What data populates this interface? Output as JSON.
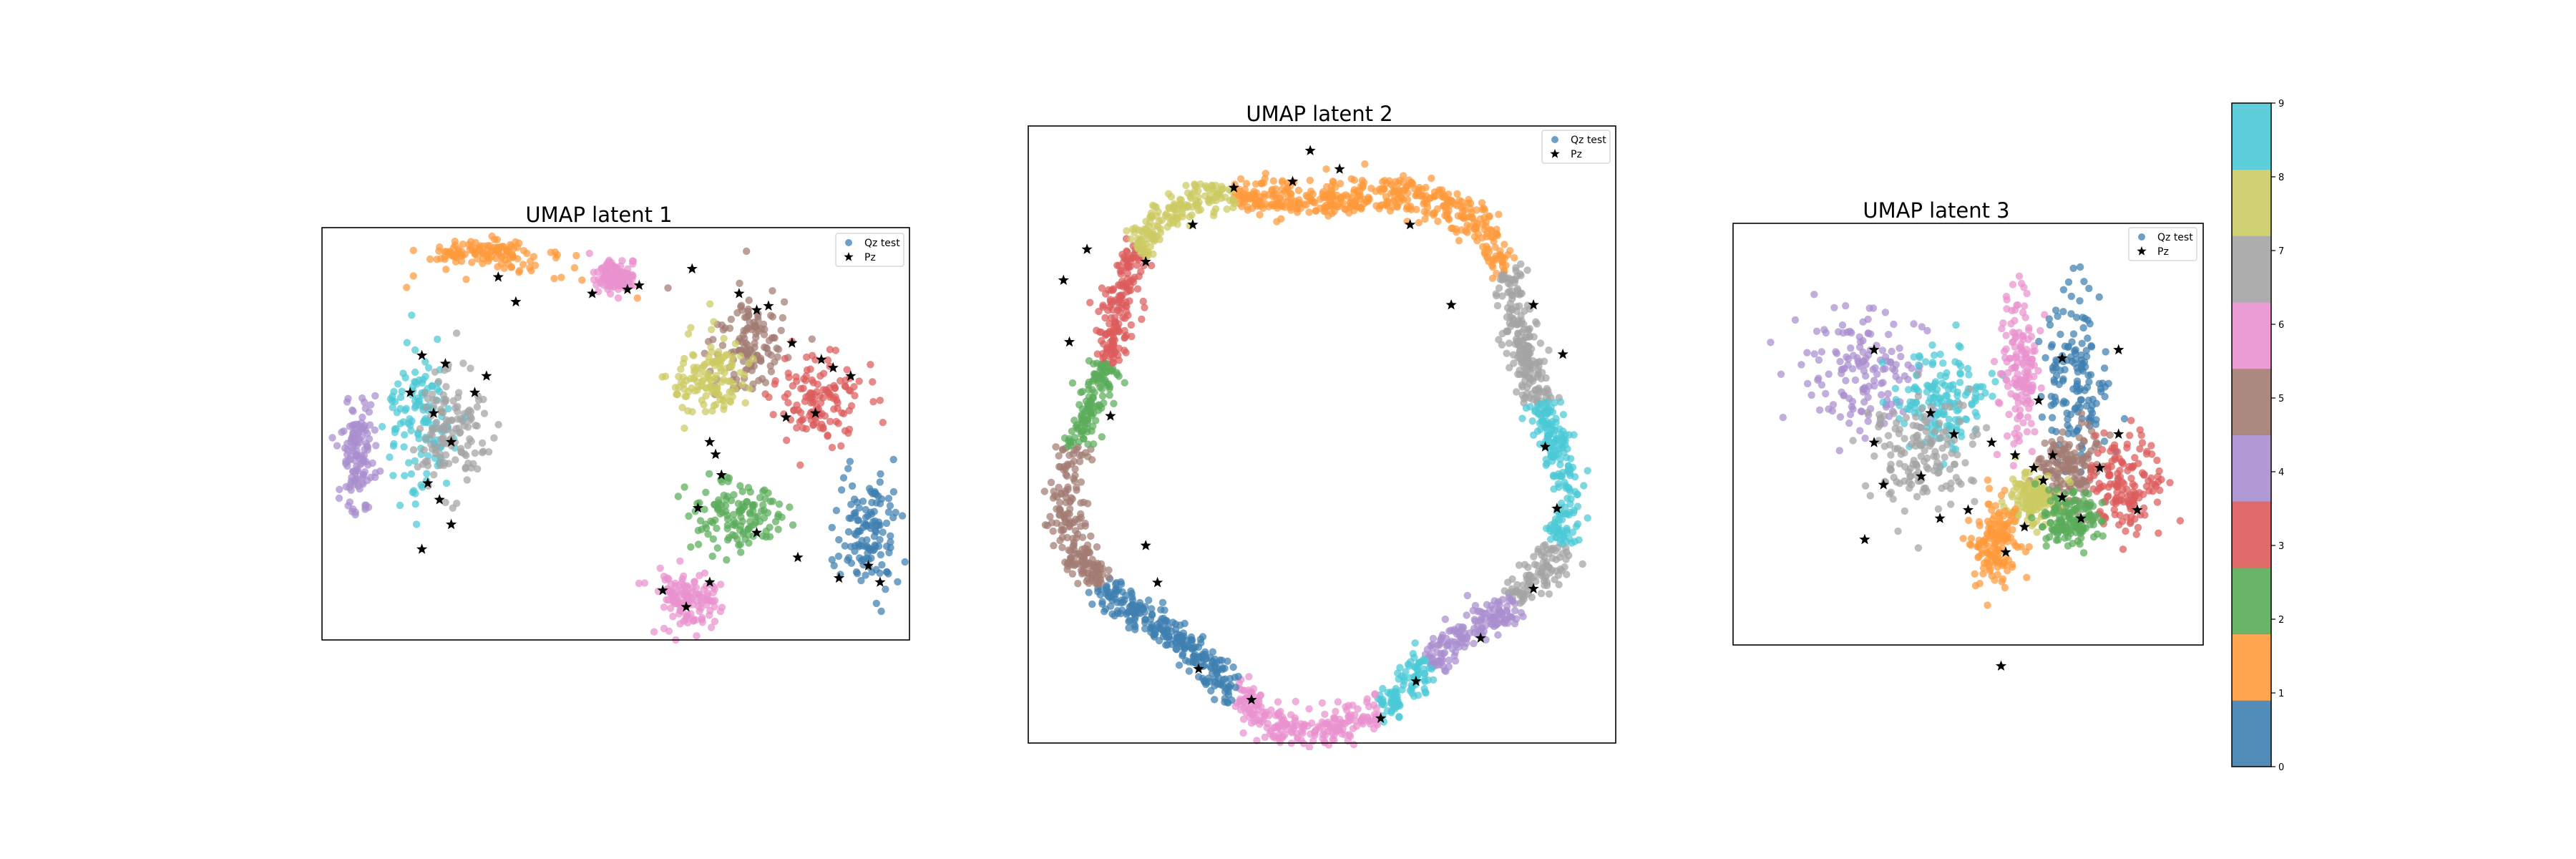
{
  "chart_data": [
    {
      "type": "scatter",
      "title": "UMAP latent 1",
      "xlabel": "",
      "ylabel": "",
      "grid": false,
      "ticks": "none",
      "legend_position": "upper-right",
      "legend": [
        {
          "label": "Qz test",
          "marker": "circle",
          "color": "#3f7fb0"
        },
        {
          "label": "Pz",
          "marker": "star",
          "color": "#000000"
        }
      ],
      "clusters": [
        {
          "class": 1,
          "label": "orange arc",
          "center": [
            0.28,
            0.08
          ],
          "spread": [
            0.12,
            0.035
          ],
          "shape": "arc"
        },
        {
          "class": 6,
          "label": "pink small",
          "center": [
            0.5,
            0.12
          ],
          "spread": [
            0.03,
            0.03
          ]
        },
        {
          "class": 5,
          "label": "brown",
          "center": [
            0.73,
            0.28
          ],
          "spread": [
            0.06,
            0.1
          ]
        },
        {
          "class": 8,
          "label": "olive",
          "center": [
            0.66,
            0.36
          ],
          "spread": [
            0.06,
            0.1
          ]
        },
        {
          "class": 3,
          "label": "red",
          "center": [
            0.85,
            0.42
          ],
          "spread": [
            0.07,
            0.1
          ]
        },
        {
          "class": 2,
          "label": "green",
          "center": [
            0.7,
            0.7
          ],
          "spread": [
            0.07,
            0.08
          ]
        },
        {
          "class": 0,
          "label": "blue",
          "center": [
            0.93,
            0.74
          ],
          "spread": [
            0.05,
            0.12
          ]
        },
        {
          "class": 6,
          "label": "pink lower",
          "center": [
            0.62,
            0.9
          ],
          "spread": [
            0.05,
            0.06
          ]
        },
        {
          "class": 9,
          "label": "cyan",
          "center": [
            0.17,
            0.47
          ],
          "spread": [
            0.05,
            0.16
          ]
        },
        {
          "class": 7,
          "label": "gray",
          "center": [
            0.22,
            0.5
          ],
          "spread": [
            0.05,
            0.14
          ]
        },
        {
          "class": 4,
          "label": "purple",
          "center": [
            0.06,
            0.55
          ],
          "spread": [
            0.03,
            0.12
          ]
        }
      ],
      "pz_points": [
        [
          0.3,
          0.12
        ],
        [
          0.33,
          0.18
        ],
        [
          0.46,
          0.16
        ],
        [
          0.52,
          0.15
        ],
        [
          0.54,
          0.14
        ],
        [
          0.63,
          0.1
        ],
        [
          0.71,
          0.16
        ],
        [
          0.74,
          0.2
        ],
        [
          0.76,
          0.19
        ],
        [
          0.8,
          0.28
        ],
        [
          0.85,
          0.32
        ],
        [
          0.87,
          0.34
        ],
        [
          0.9,
          0.36
        ],
        [
          0.84,
          0.45
        ],
        [
          0.79,
          0.46
        ],
        [
          0.66,
          0.52
        ],
        [
          0.67,
          0.55
        ],
        [
          0.68,
          0.6
        ],
        [
          0.64,
          0.68
        ],
        [
          0.74,
          0.74
        ],
        [
          0.81,
          0.8
        ],
        [
          0.88,
          0.85
        ],
        [
          0.93,
          0.82
        ],
        [
          0.95,
          0.86
        ],
        [
          0.62,
          0.92
        ],
        [
          0.58,
          0.88
        ],
        [
          0.66,
          0.86
        ],
        [
          0.17,
          0.31
        ],
        [
          0.21,
          0.33
        ],
        [
          0.15,
          0.4
        ],
        [
          0.19,
          0.45
        ],
        [
          0.22,
          0.52
        ],
        [
          0.18,
          0.62
        ],
        [
          0.2,
          0.66
        ],
        [
          0.22,
          0.72
        ],
        [
          0.17,
          0.78
        ],
        [
          0.26,
          0.4
        ],
        [
          0.28,
          0.36
        ]
      ]
    },
    {
      "type": "scatter",
      "title": "UMAP latent 2",
      "xlabel": "",
      "ylabel": "",
      "grid": false,
      "ticks": "none",
      "legend_position": "upper-right",
      "legend": [
        {
          "label": "Qz test",
          "marker": "circle",
          "color": "#3f7fb0"
        },
        {
          "label": "Pz",
          "marker": "star",
          "color": "#000000"
        }
      ],
      "ring": {
        "center": [
          0.49,
          0.52
        ],
        "radius": [
          0.41,
          0.43
        ],
        "band_width": 0.035
      },
      "ring_segments": [
        {
          "class": 1,
          "from_deg": -110,
          "to_deg": -40
        },
        {
          "class": 7,
          "from_deg": -40,
          "to_deg": -10
        },
        {
          "class": 9,
          "from_deg": -10,
          "to_deg": 20
        },
        {
          "class": 7,
          "from_deg": 20,
          "to_deg": 35
        },
        {
          "class": 4,
          "from_deg": 35,
          "to_deg": 60
        },
        {
          "class": 9,
          "from_deg": 60,
          "to_deg": 75
        },
        {
          "class": 6,
          "from_deg": 75,
          "to_deg": 110
        },
        {
          "class": 0,
          "from_deg": 110,
          "to_deg": 150
        },
        {
          "class": 5,
          "from_deg": 150,
          "to_deg": 180
        },
        {
          "class": 2,
          "from_deg": 180,
          "to_deg": 200
        },
        {
          "class": 3,
          "from_deg": 200,
          "to_deg": 225
        },
        {
          "class": 8,
          "from_deg": 225,
          "to_deg": 250
        }
      ],
      "pz_points": [
        [
          0.48,
          0.04
        ],
        [
          0.53,
          0.07
        ],
        [
          0.65,
          0.16
        ],
        [
          0.72,
          0.29
        ],
        [
          0.86,
          0.29
        ],
        [
          0.91,
          0.37
        ],
        [
          0.88,
          0.52
        ],
        [
          0.9,
          0.62
        ],
        [
          0.86,
          0.75
        ],
        [
          0.77,
          0.83
        ],
        [
          0.66,
          0.9
        ],
        [
          0.6,
          0.96
        ],
        [
          0.38,
          0.93
        ],
        [
          0.29,
          0.88
        ],
        [
          0.22,
          0.74
        ],
        [
          0.2,
          0.68
        ],
        [
          0.14,
          0.47
        ],
        [
          0.07,
          0.35
        ],
        [
          0.06,
          0.25
        ],
        [
          0.1,
          0.2
        ],
        [
          0.2,
          0.22
        ],
        [
          0.28,
          0.16
        ],
        [
          0.35,
          0.1
        ],
        [
          0.45,
          0.09
        ]
      ]
    },
    {
      "type": "scatter",
      "title": "UMAP latent 3",
      "xlabel": "",
      "ylabel": "",
      "grid": false,
      "ticks": "none",
      "legend_position": "upper-right",
      "legend": [
        {
          "label": "Qz test",
          "marker": "circle",
          "color": "#3f7fb0"
        },
        {
          "label": "Pz",
          "marker": "star",
          "color": "#000000"
        }
      ],
      "clusters": [
        {
          "class": 4,
          "label": "purple",
          "center": [
            0.28,
            0.35
          ],
          "spread": [
            0.12,
            0.12
          ]
        },
        {
          "class": 9,
          "label": "cyan",
          "center": [
            0.44,
            0.42
          ],
          "spread": [
            0.08,
            0.12
          ]
        },
        {
          "class": 7,
          "label": "gray",
          "center": [
            0.4,
            0.55
          ],
          "spread": [
            0.1,
            0.12
          ]
        },
        {
          "class": 6,
          "label": "pink",
          "center": [
            0.61,
            0.35
          ],
          "spread": [
            0.04,
            0.16
          ]
        },
        {
          "class": 0,
          "label": "blue",
          "center": [
            0.73,
            0.37
          ],
          "spread": [
            0.06,
            0.17
          ]
        },
        {
          "class": 5,
          "label": "brown",
          "center": [
            0.72,
            0.58
          ],
          "spread": [
            0.07,
            0.08
          ]
        },
        {
          "class": 3,
          "label": "red",
          "center": [
            0.83,
            0.62
          ],
          "spread": [
            0.07,
            0.1
          ]
        },
        {
          "class": 8,
          "label": "olive",
          "center": [
            0.64,
            0.66
          ],
          "spread": [
            0.05,
            0.06
          ]
        },
        {
          "class": 2,
          "label": "green",
          "center": [
            0.72,
            0.7
          ],
          "spread": [
            0.06,
            0.06
          ]
        },
        {
          "class": 1,
          "label": "orange",
          "center": [
            0.56,
            0.75
          ],
          "spread": [
            0.05,
            0.1
          ]
        }
      ],
      "pz_points": [
        [
          0.42,
          0.45
        ],
        [
          0.47,
          0.5
        ],
        [
          0.55,
          0.52
        ],
        [
          0.6,
          0.55
        ],
        [
          0.64,
          0.58
        ],
        [
          0.66,
          0.61
        ],
        [
          0.68,
          0.55
        ],
        [
          0.7,
          0.65
        ],
        [
          0.74,
          0.7
        ],
        [
          0.78,
          0.58
        ],
        [
          0.82,
          0.5
        ],
        [
          0.86,
          0.68
        ],
        [
          0.62,
          0.72
        ],
        [
          0.58,
          0.78
        ],
        [
          0.5,
          0.68
        ],
        [
          0.44,
          0.7
        ],
        [
          0.3,
          0.52
        ],
        [
          0.32,
          0.62
        ],
        [
          0.4,
          0.6
        ],
        [
          0.28,
          0.75
        ],
        [
          0.65,
          0.42
        ],
        [
          0.7,
          0.32
        ],
        [
          0.82,
          0.3
        ],
        [
          0.3,
          0.3
        ],
        [
          0.57,
          1.05
        ]
      ]
    }
  ],
  "colorbar": {
    "ticks": [
      "0",
      "1",
      "2",
      "3",
      "4",
      "5",
      "6",
      "7",
      "8",
      "9"
    ],
    "colors": [
      "#3f7fb0",
      "#ff9a3c",
      "#5aac5a",
      "#dc5b5b",
      "#a98fcf",
      "#a27c73",
      "#e991cf",
      "#a4a4a4",
      "#cccb63",
      "#4bc9d6"
    ]
  },
  "legend_labels": {
    "qz": "Qz test",
    "pz": "Pz"
  }
}
